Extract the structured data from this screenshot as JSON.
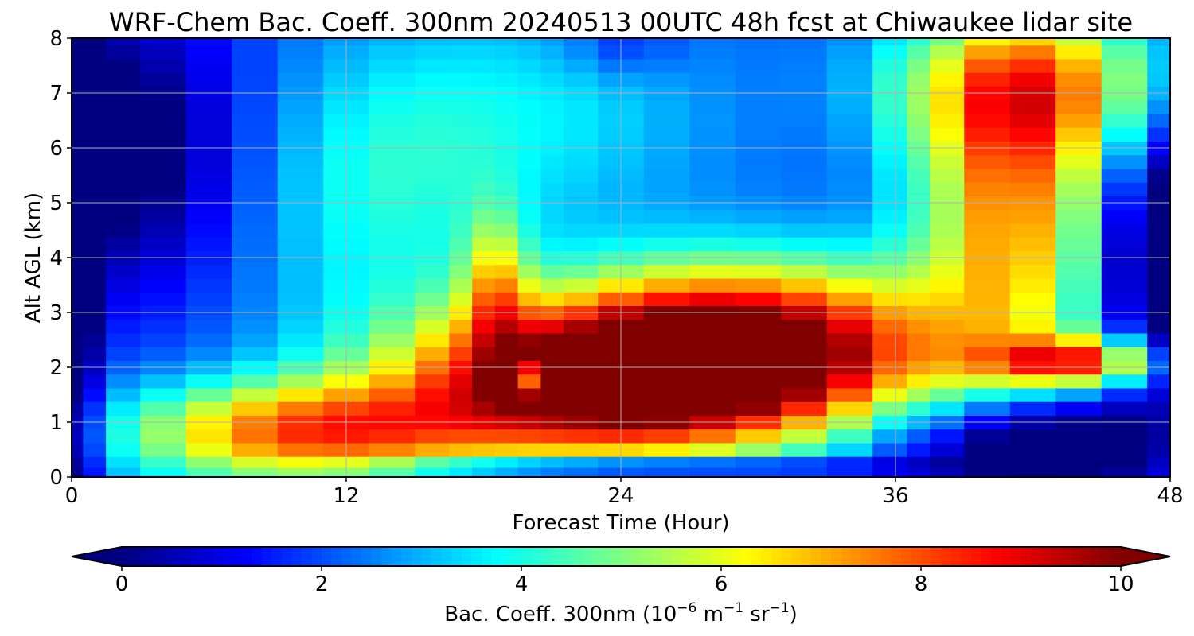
{
  "chart_data": {
    "type": "heatmap",
    "title": "WRF-Chem Bac. Coeff. 300nm  20240513 00UTC 48h fcst at Chiwaukee lidar site",
    "xlabel": "Forecast Time (Hour)",
    "ylabel": "Alt AGL (km)",
    "xlim": [
      0,
      48
    ],
    "ylim": [
      0,
      8
    ],
    "xticks": [
      "0",
      "12",
      "24",
      "36",
      "48"
    ],
    "yticks": [
      "0",
      "1",
      "2",
      "3",
      "4",
      "5",
      "6",
      "7",
      "8"
    ],
    "grid": true,
    "colormap": "jet",
    "colorbar": {
      "orientation": "horizontal",
      "location": "bottom",
      "range": [
        0,
        10
      ],
      "extend": "both",
      "ticks": [
        "0",
        "2",
        "4",
        "6",
        "8",
        "10"
      ],
      "label_main": "Bac. Coeff. 300nm  (10",
      "label_exp1": "−6",
      "label_unit1": " m",
      "label_exp2": "−1",
      "label_unit2": " sr",
      "label_exp3": "−1",
      "label_close": ")"
    },
    "x": [
      0,
      1,
      2,
      4,
      6,
      8,
      10,
      12,
      14,
      16,
      17,
      18,
      19,
      20,
      21,
      22,
      24,
      26,
      28,
      30,
      32,
      34,
      36,
      37,
      38,
      40,
      42,
      44,
      46,
      48
    ],
    "y": [
      0,
      0.1,
      0.25,
      0.5,
      0.75,
      1.0,
      1.25,
      1.5,
      1.75,
      2.0,
      2.25,
      2.5,
      2.75,
      3.0,
      3.25,
      3.5,
      3.75,
      4.0,
      4.25,
      4.5,
      4.75,
      5.0,
      5.25,
      5.5,
      5.75,
      6.0,
      6.25,
      6.5,
      6.75,
      7.0,
      7.25,
      7.5,
      7.75,
      8.0
    ]
  }
}
